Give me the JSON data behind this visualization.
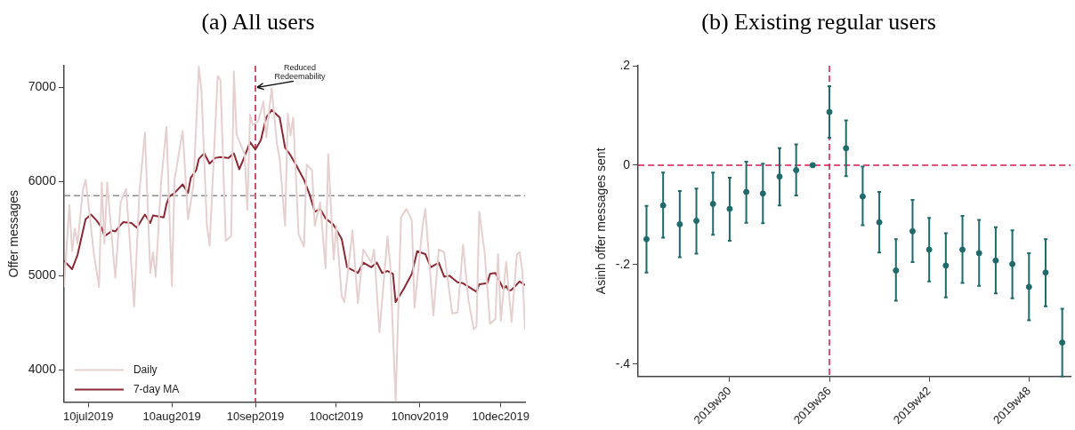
{
  "chart_data": [
    {
      "type": "line",
      "title": "(a) All users",
      "ylabel": "Offer messages",
      "grid": false,
      "legend": "bottom left",
      "marker": "none",
      "line_style": "solid",
      "xlim": [
        "2019-07-01",
        "2019-12-19"
      ],
      "ylim": [
        3660,
        7230
      ],
      "xticks": [
        {
          "value": "2019-07-10",
          "label": "10jul2019"
        },
        {
          "value": "2019-08-10",
          "label": "10aug2019"
        },
        {
          "value": "2019-09-10",
          "label": "10sep2019"
        },
        {
          "value": "2019-10-10",
          "label": "10oct2019"
        },
        {
          "value": "2019-11-10",
          "label": "10nov2019"
        },
        {
          "value": "2019-12-10",
          "label": "10dec2019"
        }
      ],
      "yticks": [
        4000,
        5000,
        6000,
        7000
      ],
      "series": [
        {
          "name": "Daily",
          "color": "#e6cfcf",
          "x": [
            "2019-07-01",
            "2019-07-03",
            "2019-07-04",
            "2019-07-05",
            "2019-07-06",
            "2019-07-08",
            "2019-07-09",
            "2019-07-10",
            "2019-07-12",
            "2019-07-14",
            "2019-07-15",
            "2019-07-16",
            "2019-07-17",
            "2019-07-20",
            "2019-07-22",
            "2019-07-24",
            "2019-07-25",
            "2019-07-27",
            "2019-07-29",
            "2019-07-31",
            "2019-08-02",
            "2019-08-03",
            "2019-08-04",
            "2019-08-06",
            "2019-08-08",
            "2019-08-10",
            "2019-08-11",
            "2019-08-14",
            "2019-08-16",
            "2019-08-18",
            "2019-08-20",
            "2019-08-21",
            "2019-08-23",
            "2019-08-24",
            "2019-08-27",
            "2019-08-28",
            "2019-08-30",
            "2019-09-01",
            "2019-09-02",
            "2019-09-03",
            "2019-09-06",
            "2019-09-07",
            "2019-09-08",
            "2019-09-09",
            "2019-09-11",
            "2019-09-13",
            "2019-09-14",
            "2019-09-16",
            "2019-09-18",
            "2019-09-19",
            "2019-09-21",
            "2019-09-22",
            "2019-09-23",
            "2019-09-24",
            "2019-09-26",
            "2019-09-28",
            "2019-09-29",
            "2019-10-01",
            "2019-10-02",
            "2019-10-04",
            "2019-10-06",
            "2019-10-07",
            "2019-10-09",
            "2019-10-10",
            "2019-10-12",
            "2019-10-13",
            "2019-10-16",
            "2019-10-18",
            "2019-10-20",
            "2019-10-23",
            "2019-10-24",
            "2019-10-26",
            "2019-10-29",
            "2019-10-30",
            "2019-11-01",
            "2019-11-03",
            "2019-11-05",
            "2019-11-07",
            "2019-11-08",
            "2019-11-11",
            "2019-11-12",
            "2019-11-15",
            "2019-11-17",
            "2019-11-19",
            "2019-11-22",
            "2019-11-24",
            "2019-11-26",
            "2019-11-28",
            "2019-11-30",
            "2019-12-01",
            "2019-12-02",
            "2019-12-04",
            "2019-12-06",
            "2019-12-08",
            "2019-12-09",
            "2019-12-10",
            "2019-12-12",
            "2019-12-14",
            "2019-12-16",
            "2019-12-17",
            "2019-12-18",
            "2019-12-19"
          ],
          "values": [
            4880,
            5750,
            5260,
            5500,
            5340,
            5910,
            6020,
            5780,
            5250,
            4880,
            5990,
            5340,
            5990,
            4980,
            5780,
            5920,
            5530,
            4670,
            5900,
            6520,
            5030,
            5250,
            4990,
            5990,
            6580,
            4890,
            6020,
            6540,
            5600,
            5960,
            7220,
            6950,
            5530,
            5320,
            7120,
            7080,
            5370,
            5420,
            7170,
            6500,
            6290,
            5700,
            6710,
            6600,
            6640,
            6850,
            6470,
            6990,
            6400,
            6240,
            5530,
            6720,
            6490,
            6680,
            5440,
            5310,
            6180,
            6120,
            5530,
            5780,
            5080,
            6290,
            5170,
            5530,
            4780,
            4720,
            5480,
            4710,
            5280,
            5140,
            5280,
            4400,
            5420,
            5110,
            3670,
            5620,
            5710,
            5590,
            4660,
            5530,
            5710,
            4580,
            5280,
            5250,
            4600,
            4610,
            5330,
            4740,
            4430,
            4460,
            5680,
            5250,
            4490,
            4540,
            5230,
            4520,
            5150,
            4510,
            5230,
            5250,
            5050,
            4430
          ]
        },
        {
          "name": "7-day MA",
          "color": "#8b2a35",
          "x": [
            "2019-07-01",
            "2019-07-04",
            "2019-07-06",
            "2019-07-09",
            "2019-07-11",
            "2019-07-13",
            "2019-07-15",
            "2019-07-16",
            "2019-07-19",
            "2019-07-20",
            "2019-07-22",
            "2019-07-23",
            "2019-07-26",
            "2019-07-28",
            "2019-07-31",
            "2019-08-02",
            "2019-08-03",
            "2019-08-07",
            "2019-08-08",
            "2019-08-09",
            "2019-08-11",
            "2019-08-14",
            "2019-08-16",
            "2019-08-17",
            "2019-08-19",
            "2019-08-20",
            "2019-08-22",
            "2019-08-24",
            "2019-08-26",
            "2019-08-28",
            "2019-08-31",
            "2019-09-02",
            "2019-09-04",
            "2019-09-06",
            "2019-09-08",
            "2019-09-10",
            "2019-09-12",
            "2019-09-14",
            "2019-09-16",
            "2019-09-19",
            "2019-09-21",
            "2019-09-23",
            "2019-09-25",
            "2019-09-28",
            "2019-09-30",
            "2019-10-02",
            "2019-10-04",
            "2019-10-06",
            "2019-10-09",
            "2019-10-12",
            "2019-10-14",
            "2019-10-18",
            "2019-10-20",
            "2019-10-23",
            "2019-10-25",
            "2019-10-27",
            "2019-10-29",
            "2019-10-31",
            "2019-11-01",
            "2019-11-04",
            "2019-11-07",
            "2019-11-09",
            "2019-11-12",
            "2019-11-14",
            "2019-11-17",
            "2019-11-19",
            "2019-11-21",
            "2019-11-24",
            "2019-11-26",
            "2019-12-01",
            "2019-12-02",
            "2019-12-05",
            "2019-12-06",
            "2019-12-08",
            "2019-12-11",
            "2019-12-12",
            "2019-12-13",
            "2019-12-14",
            "2019-12-15",
            "2019-12-17",
            "2019-12-19"
          ],
          "values": [
            5160,
            5070,
            5220,
            5600,
            5650,
            5590,
            5510,
            5420,
            5480,
            5470,
            5540,
            5570,
            5560,
            5510,
            5650,
            5560,
            5640,
            5620,
            5760,
            5840,
            5880,
            5970,
            5880,
            6040,
            6120,
            6240,
            6300,
            6190,
            6250,
            6260,
            6250,
            6300,
            6130,
            6270,
            6420,
            6340,
            6440,
            6680,
            6760,
            6680,
            6360,
            6280,
            6180,
            6020,
            5870,
            5680,
            5710,
            5610,
            5540,
            5390,
            5090,
            5030,
            5140,
            5090,
            5140,
            5030,
            5050,
            5020,
            4720,
            4860,
            5020,
            5260,
            5230,
            5090,
            5140,
            4990,
            5000,
            4930,
            4920,
            4830,
            4910,
            4920,
            5020,
            5030,
            4860,
            4890,
            4840,
            4850,
            4880,
            4940,
            4900
          ]
        }
      ],
      "ref_lines": [
        {
          "axis": "x",
          "value": "2019-09-10",
          "color": "#c8143c",
          "line_style": "dashed"
        },
        {
          "axis": "y",
          "value": 5850,
          "color": "#8c8c8c",
          "line_style": "dashed"
        }
      ],
      "annotations": [
        {
          "text": "Reduced\nRedeemability",
          "x": "2019-09-10",
          "y": 7000
        }
      ]
    },
    {
      "type": "scatter",
      "title": "(b) Existing regular users",
      "ylabel": "Asinh offer messages sent",
      "grid": false,
      "legend": false,
      "marker": "circle",
      "ylim": [
        -0.425,
        0.2
      ],
      "categories": [
        null,
        null,
        null,
        null,
        null,
        "2019w30",
        null,
        null,
        null,
        null,
        null,
        "2019w36",
        null,
        null,
        null,
        null,
        null,
        "2019w42",
        null,
        null,
        null,
        null,
        null,
        "2019w48",
        null,
        null
      ],
      "yticks": [
        {
          "value": 0.2,
          "label": ".2"
        },
        {
          "value": 0,
          "label": "0"
        },
        {
          "value": -0.2,
          "label": "-.2"
        },
        {
          "value": -0.4,
          "label": "-.4"
        }
      ],
      "series": [
        {
          "color": "#1f6b6b",
          "values": [
            -0.149,
            -0.081,
            -0.119,
            -0.112,
            -0.078,
            -0.088,
            -0.054,
            -0.057,
            -0.023,
            -0.01,
            0,
            0.107,
            0.034,
            -0.063,
            -0.115,
            -0.212,
            -0.133,
            -0.17,
            -0.202,
            -0.17,
            -0.177,
            -0.192,
            -0.199,
            -0.245,
            -0.216,
            -0.357
          ],
          "errors": [
            [
              -0.216,
              -0.082
            ],
            [
              -0.146,
              -0.015
            ],
            [
              -0.185,
              -0.052
            ],
            [
              -0.178,
              -0.047
            ],
            [
              -0.14,
              -0.015
            ],
            [
              -0.152,
              -0.025
            ],
            [
              -0.116,
              0.007
            ],
            [
              -0.117,
              0.003
            ],
            [
              -0.081,
              0.034
            ],
            [
              -0.061,
              0.042
            ],
            null,
            [
              0.055,
              0.159
            ],
            [
              -0.022,
              0.09
            ],
            [
              -0.121,
              -0.003
            ],
            [
              -0.176,
              -0.054
            ],
            [
              -0.273,
              -0.149
            ],
            [
              -0.195,
              -0.07
            ],
            [
              -0.234,
              -0.106
            ],
            [
              -0.266,
              -0.137
            ],
            [
              -0.237,
              -0.102
            ],
            [
              -0.243,
              -0.11
            ],
            [
              -0.258,
              -0.125
            ],
            [
              -0.268,
              -0.131
            ],
            [
              -0.312,
              -0.177
            ],
            [
              -0.284,
              -0.149
            ],
            [
              -0.425,
              -0.289
            ]
          ]
        }
      ],
      "ref_lines": [
        {
          "axis": "y",
          "value": 0,
          "color": "#d6194b",
          "line_style": "dashed"
        },
        {
          "axis": "x",
          "value": "2019w36",
          "color": "#d6194b",
          "line_style": "dashed"
        }
      ]
    }
  ]
}
